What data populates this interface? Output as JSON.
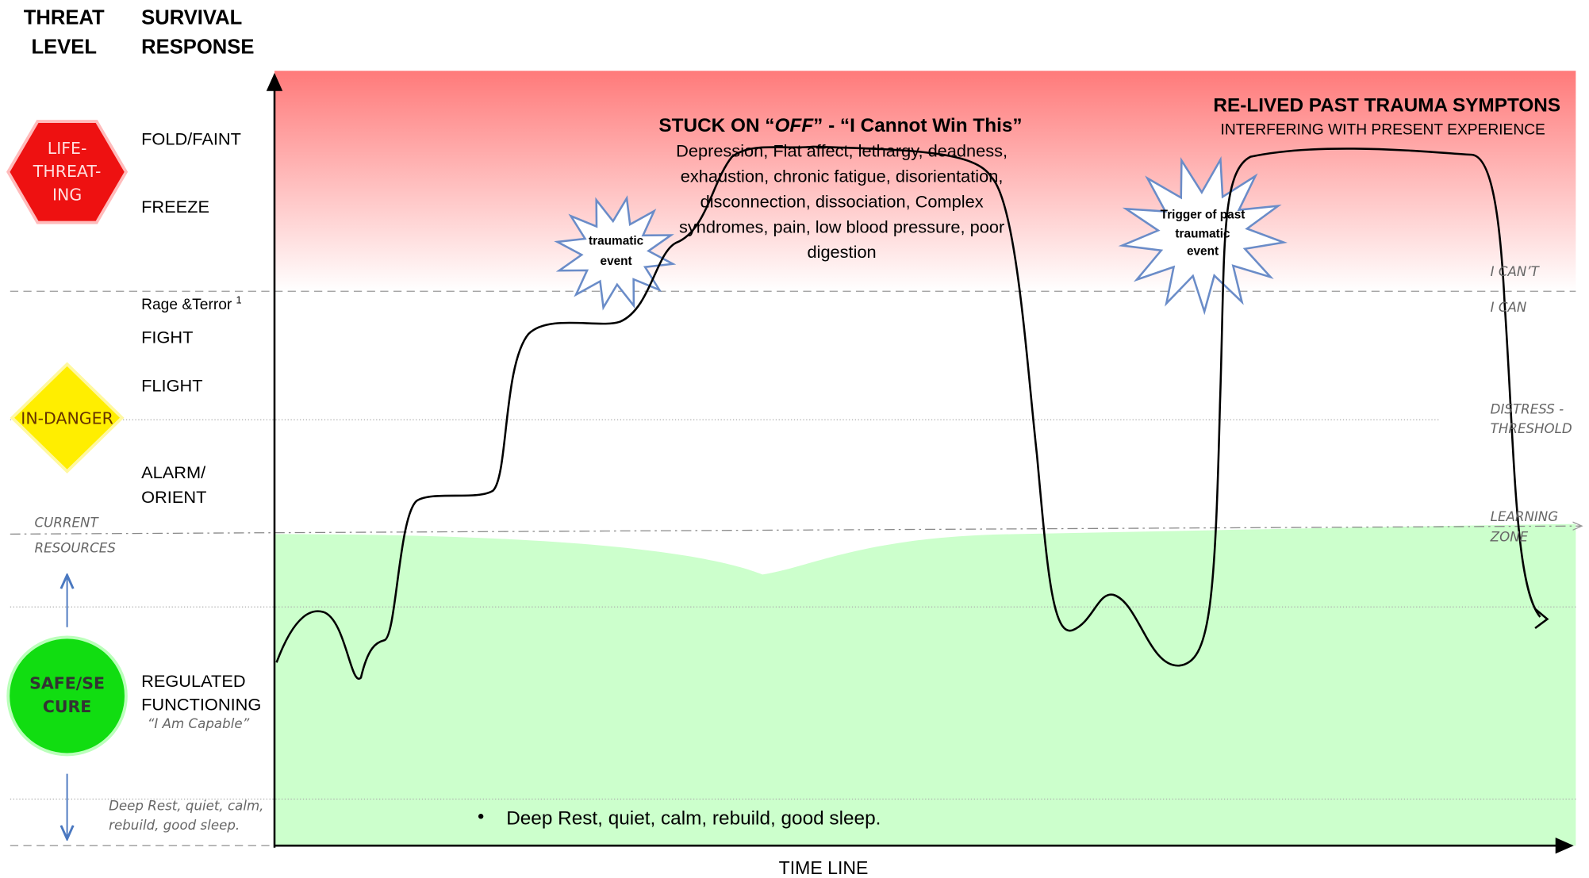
{
  "column_headers": {
    "threat_level": [
      "THREAT",
      "LEVEL"
    ],
    "survival_response": [
      "SURVIVAL",
      "RESPONSE"
    ]
  },
  "threat_levels": [
    [
      "LIFE-",
      "THREAT-",
      "ING"
    ],
    [
      "IN-DANGER"
    ],
    [
      "SAFE/SE",
      "CURE"
    ]
  ],
  "responses": [
    "FOLD/FAINT",
    "FREEZE",
    {
      "text": "Rage &Terror",
      "note": "1"
    },
    "FIGHT",
    "FLIGHT",
    [
      "ALARM/",
      "ORIENT"
    ],
    [
      "REGULATED",
      "FUNCTIONING",
      "“I Am Capable”"
    ]
  ],
  "side_labels": {
    "current_resources": [
      "CURRENT",
      "RESOURCES"
    ],
    "deep_rest": [
      "Deep Rest, quiet, calm,",
      "rebuild, good sleep."
    ]
  },
  "zones": [
    "I CAN’T",
    "I CAN",
    [
      "DISTRESS -",
      "THRESHOLD"
    ],
    [
      "LEARNING",
      "ZONE"
    ]
  ],
  "stuck": {
    "title": [
      "STUCK ON “",
      "OFF",
      "” - “I Cannot Win This”"
    ],
    "body": [
      "Depression, Flat affect, lethargy, deadness,",
      "exhaustion, chronic fatigue, disorientation,",
      "disconnection, dissociation, Complex",
      "syndromes, pain, low blood pressure, poor",
      "digestion"
    ]
  },
  "relived": {
    "title": "RE-LIVED PAST TRAUMA SYMPTONS",
    "subtitle": "INTERFERING WITH PRESENT EXPERIENCE"
  },
  "bursts": [
    [
      "traumatic",
      "event"
    ],
    [
      "Trigger of past",
      "traumatic",
      "event"
    ]
  ],
  "bottom_note": "Deep Rest, quiet, calm, rebuild, good sleep.",
  "x_axis_label": "TIME LINE"
}
